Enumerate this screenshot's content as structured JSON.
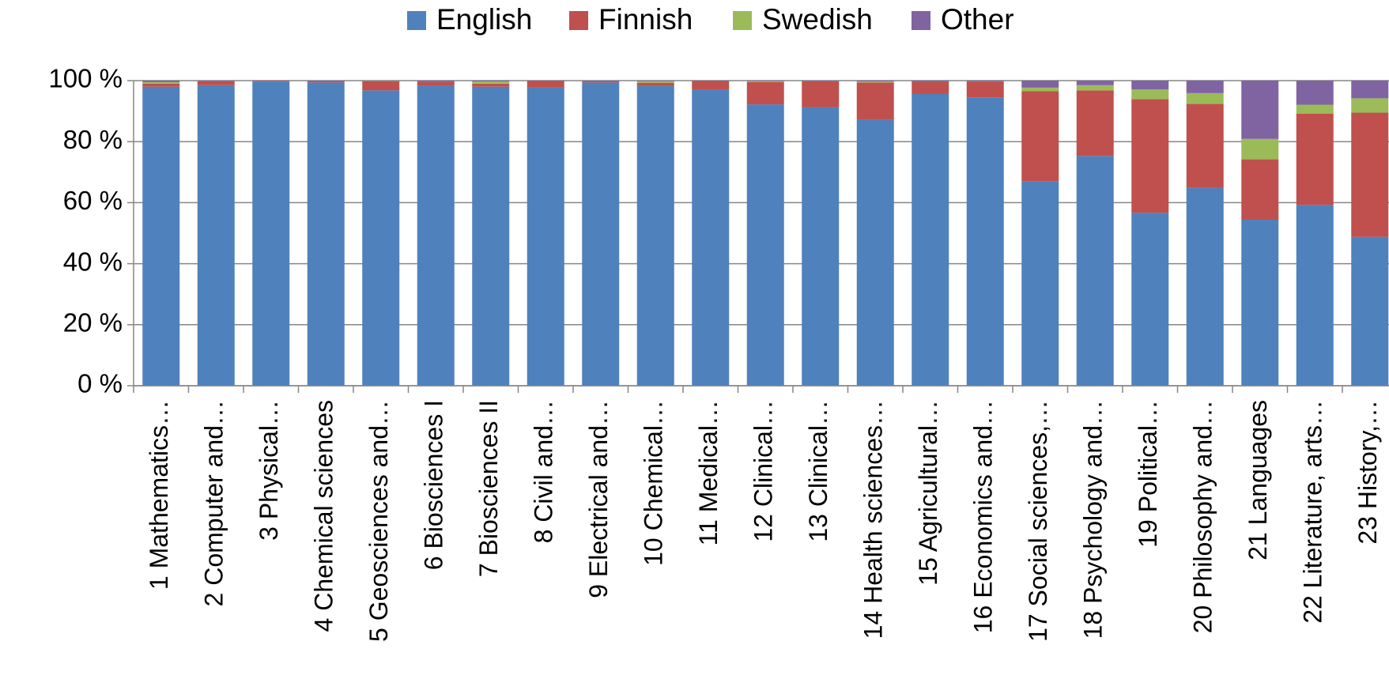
{
  "chart_data": {
    "type": "stacked_bar",
    "categories": [
      "1 Mathematics…",
      "2 Computer and…",
      "3 Physical…",
      "4 Chemical sciences",
      "5 Geosciences and…",
      "6 Biosciences I",
      "7 Biosciences II",
      "8 Civil and…",
      "9 Electrical and…",
      "10 Chemical…",
      "11 Medical…",
      "12 Clinical…",
      "13 Clinical…",
      "14 Health sciences…",
      "15 Agricultural…",
      "16 Economics and…",
      "17 Social sciences,…",
      "18 Psychology and…",
      "19 Political…",
      "20 Philosophy and…",
      "21 Languages",
      "22 Literature, arts…",
      "23 History,…"
    ],
    "series": [
      {
        "name": "English",
        "color": "#4f81bd",
        "values": [
          98,
          98.5,
          99.7,
          99.4,
          96.8,
          98.3,
          98,
          97.7,
          99.4,
          98.3,
          97,
          92.2,
          91.3,
          87.2,
          95.6,
          94.5,
          66.9,
          75.3,
          56.7,
          64.8,
          54.4,
          59.3,
          48.8
        ]
      },
      {
        "name": "Finnish",
        "color": "#c0504d",
        "values": [
          1,
          1.3,
          0.2,
          0.4,
          3,
          1.2,
          1,
          2.2,
          0.4,
          1,
          2.9,
          7.3,
          8.5,
          12.2,
          4,
          5.2,
          29.6,
          21.5,
          37.2,
          27.6,
          19.8,
          29.9,
          40.7
        ]
      },
      {
        "name": "Swedish",
        "color": "#9bbb59",
        "values": [
          0.5,
          0,
          0,
          0,
          0.1,
          0,
          0.7,
          0,
          0,
          0.5,
          0,
          0.3,
          0,
          0.3,
          0,
          0,
          1.2,
          1.7,
          3.2,
          3.5,
          6.7,
          2.9,
          4.7
        ]
      },
      {
        "name": "Other",
        "color": "#8064a2",
        "values": [
          0.5,
          0.2,
          0.1,
          0.2,
          0.1,
          0.5,
          0.3,
          0.1,
          0.2,
          0.2,
          0.1,
          0.2,
          0.2,
          0.3,
          0.4,
          0.3,
          2.3,
          1.5,
          2.9,
          4.1,
          19.1,
          7.9,
          5.8
        ]
      }
    ],
    "ylim": [
      0,
      100
    ],
    "yticks": [
      {
        "value": 0,
        "label": "0 %"
      },
      {
        "value": 20,
        "label": "20 %"
      },
      {
        "value": 40,
        "label": "40 %"
      },
      {
        "value": 60,
        "label": "60 %"
      },
      {
        "value": 80,
        "label": "80 %"
      },
      {
        "value": 100,
        "label": "100 %"
      }
    ],
    "grid": true,
    "legend": "top"
  }
}
